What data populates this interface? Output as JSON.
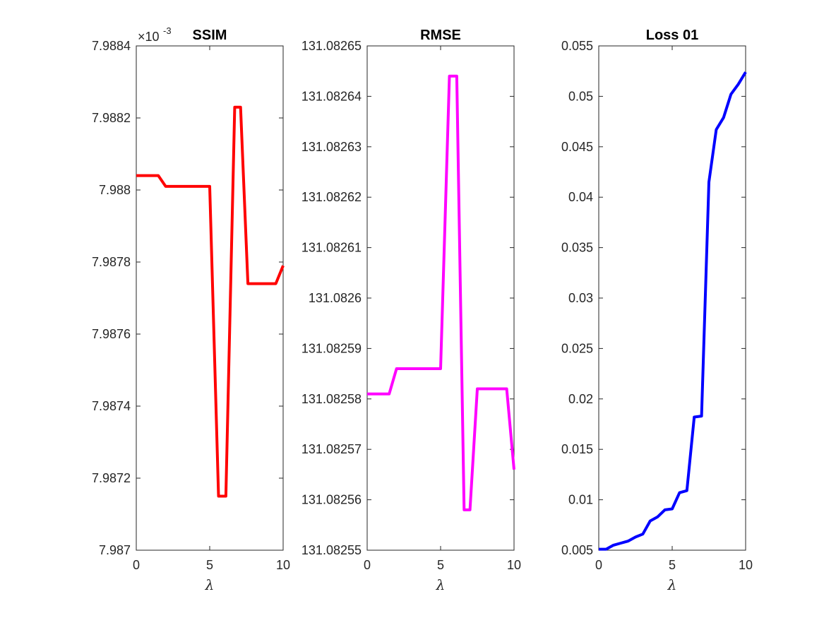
{
  "chart_data": [
    {
      "type": "line",
      "title": "SSIM",
      "xlabel": "λ",
      "ylabel": "",
      "xlim": [
        0,
        10
      ],
      "ylim": [
        7.987,
        7.9884
      ],
      "xticks": [
        "0",
        "5",
        "10"
      ],
      "yticks": [
        "7.987",
        "7.9872",
        "7.9874",
        "7.9876",
        "7.9878",
        "7.988",
        "7.9882",
        "7.9884"
      ],
      "y_multiplier": "×10",
      "y_multiplier_exponent": "-3",
      "color": "#ff0000",
      "x": [
        0,
        1.5,
        2,
        5,
        5.6,
        6.1,
        6.7,
        7.1,
        7.6,
        9.5,
        10
      ],
      "y": [
        7.98804,
        7.98804,
        7.98801,
        7.98801,
        7.98715,
        7.98715,
        7.98823,
        7.98823,
        7.98774,
        7.98774,
        7.98779
      ]
    },
    {
      "type": "line",
      "title": "RMSE",
      "xlabel": "λ",
      "ylabel": "",
      "xlim": [
        0,
        10
      ],
      "ylim": [
        131.08255,
        131.08265
      ],
      "xticks": [
        "0",
        "5",
        "10"
      ],
      "yticks": [
        "131.08255",
        "131.08256",
        "131.08257",
        "131.08258",
        "131.08259",
        "131.0826",
        "131.08261",
        "131.08262",
        "131.08263",
        "131.08264",
        "131.08265"
      ],
      "color": "#ff00ff",
      "x": [
        0,
        1.5,
        2,
        5,
        5.6,
        6.1,
        6.6,
        7,
        7.5,
        9.5,
        10
      ],
      "y": [
        131.082581,
        131.082581,
        131.082586,
        131.082586,
        131.082644,
        131.082644,
        131.082558,
        131.082558,
        131.082582,
        131.082582,
        131.082566
      ]
    },
    {
      "type": "line",
      "title": "Loss 01",
      "xlabel": "λ",
      "ylabel": "",
      "xlim": [
        0,
        10
      ],
      "ylim": [
        0.005,
        0.055
      ],
      "xticks": [
        "0",
        "5",
        "10"
      ],
      "yticks": [
        "0.005",
        "0.01",
        "0.015",
        "0.02",
        "0.025",
        "0.03",
        "0.035",
        "0.04",
        "0.045",
        "0.05",
        "0.055"
      ],
      "color": "#0000ff",
      "x": [
        0,
        0.5,
        1,
        1.5,
        2,
        2.5,
        3,
        3.5,
        4,
        4.5,
        5,
        5.5,
        6,
        6.5,
        7,
        7.5,
        8,
        8.5,
        9,
        9.5,
        10
      ],
      "y": [
        0.0051,
        0.0051,
        0.0055,
        0.0057,
        0.0059,
        0.0063,
        0.0066,
        0.0079,
        0.0083,
        0.009,
        0.0091,
        0.0107,
        0.0109,
        0.0182,
        0.0183,
        0.0415,
        0.0467,
        0.0479,
        0.0502,
        0.0512,
        0.0524
      ]
    }
  ]
}
